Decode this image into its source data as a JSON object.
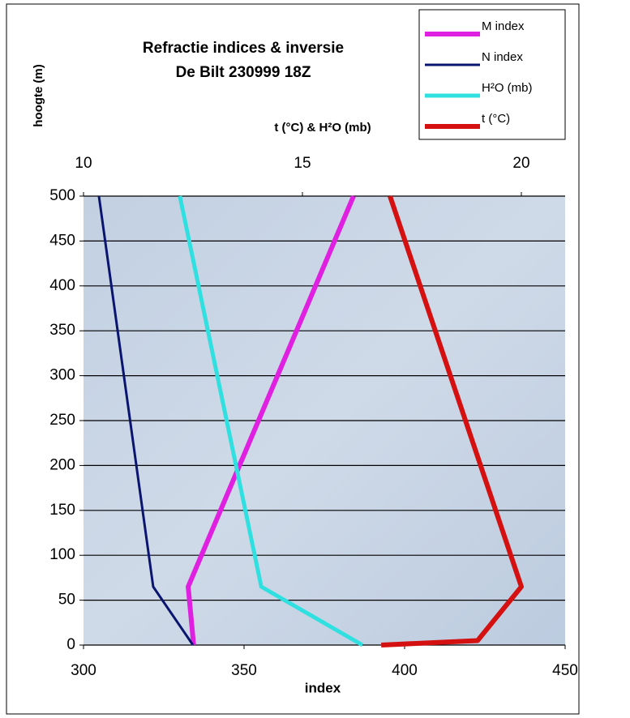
{
  "chart_data": {
    "type": "line",
    "title": [
      "Refractie indices & inversie",
      "De Bilt 230999 18Z"
    ],
    "ylabel": "hoogte (m)",
    "xlabel": "index",
    "x2label": "t (°C) & H²O (mb)",
    "ylim": [
      0,
      500
    ],
    "yticks": [
      0,
      50,
      100,
      150,
      200,
      250,
      300,
      350,
      400,
      450,
      500
    ],
    "xlim": [
      300,
      450
    ],
    "xticks": [
      300,
      350,
      400,
      450
    ],
    "x2lim": [
      10,
      21
    ],
    "x2ticks": [
      10,
      15,
      20
    ],
    "grid": true,
    "legend": "top-right",
    "series": [
      {
        "name": "M index",
        "color": "#e020e0",
        "axis": "x",
        "values": [
          334.3,
          332.6,
          384.1
        ],
        "heights": [
          0,
          65,
          500
        ]
      },
      {
        "name": "N index",
        "color": "#0a1570",
        "axis": "x",
        "values": [
          334.1,
          321.7,
          304.8
        ],
        "heights": [
          0,
          65,
          500
        ]
      },
      {
        "name": "H²O (mb)",
        "color": "#30e0e0",
        "axis": "x2",
        "values": [
          16.37,
          14.06,
          12.2
        ],
        "heights": [
          0,
          65,
          500
        ]
      },
      {
        "name": "t (°C)",
        "color": "#d41010",
        "axis": "x2",
        "values": [
          16.8,
          19.0,
          20.0,
          17.0
        ],
        "heights": [
          0,
          5,
          65,
          500
        ]
      }
    ]
  }
}
